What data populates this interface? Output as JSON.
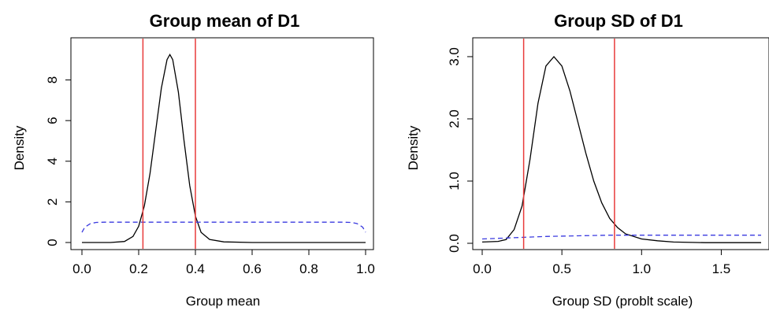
{
  "colors": {
    "density": "#000000",
    "prior": "#3a3adf",
    "interval": "#e83a3a"
  },
  "chart_data": [
    {
      "type": "line",
      "title": "Group mean of D1",
      "xlabel": "Group mean",
      "ylabel": "Density",
      "xlim": [
        0.0,
        1.0
      ],
      "ylim": [
        0,
        9.3
      ],
      "xticks": [
        "0.0",
        "0.2",
        "0.4",
        "0.6",
        "0.8",
        "1.0"
      ],
      "yticks": [
        "0",
        "2",
        "4",
        "6",
        "8"
      ],
      "vlines": [
        0.215,
        0.4
      ],
      "series": [
        {
          "style": "solid",
          "x": [
            0.0,
            0.1,
            0.15,
            0.18,
            0.2,
            0.22,
            0.24,
            0.26,
            0.28,
            0.3,
            0.31,
            0.32,
            0.34,
            0.36,
            0.38,
            0.4,
            0.42,
            0.45,
            0.5,
            0.6,
            0.8,
            1.0
          ],
          "y": [
            0,
            0,
            0.05,
            0.3,
            0.8,
            1.8,
            3.4,
            5.5,
            7.6,
            9.0,
            9.25,
            9.0,
            7.4,
            5.0,
            2.8,
            1.3,
            0.5,
            0.15,
            0.03,
            0,
            0,
            0
          ]
        },
        {
          "style": "dashed",
          "x": [
            0.0,
            0.01,
            0.03,
            0.05,
            0.08,
            0.1,
            0.5,
            0.9,
            0.92,
            0.95,
            0.97,
            0.99,
            1.0
          ],
          "y": [
            0.5,
            0.75,
            0.93,
            0.99,
            1.0,
            1.0,
            1.0,
            1.0,
            1.0,
            0.99,
            0.93,
            0.75,
            0.5
          ]
        }
      ]
    },
    {
      "type": "line",
      "title": "Group SD of D1",
      "xlabel": "Group SD (problt scale)",
      "ylabel": "Density",
      "xlim": [
        0.0,
        1.75
      ],
      "ylim": [
        0,
        3.05
      ],
      "xticks": [
        "0.0",
        "0.5",
        "1.0",
        "1.5"
      ],
      "yticks": [
        "0.0",
        "1.0",
        "2.0",
        "3.0"
      ],
      "vlines": [
        0.26,
        0.83
      ],
      "series": [
        {
          "style": "solid",
          "x": [
            0.0,
            0.1,
            0.15,
            0.2,
            0.25,
            0.3,
            0.35,
            0.4,
            0.45,
            0.5,
            0.55,
            0.6,
            0.65,
            0.7,
            0.75,
            0.8,
            0.85,
            0.9,
            1.0,
            1.1,
            1.2,
            1.4,
            1.6,
            1.75
          ],
          "y": [
            0.02,
            0.03,
            0.06,
            0.22,
            0.6,
            1.35,
            2.25,
            2.85,
            3.0,
            2.85,
            2.45,
            1.95,
            1.45,
            1.0,
            0.65,
            0.4,
            0.25,
            0.15,
            0.07,
            0.04,
            0.02,
            0.01,
            0.01,
            0.01
          ]
        },
        {
          "style": "dashed",
          "x": [
            0.0,
            0.2,
            0.4,
            0.6,
            0.8,
            1.0,
            1.2,
            1.4,
            1.6,
            1.75
          ],
          "y": [
            0.07,
            0.09,
            0.11,
            0.12,
            0.13,
            0.13,
            0.13,
            0.13,
            0.13,
            0.13
          ]
        }
      ]
    }
  ]
}
